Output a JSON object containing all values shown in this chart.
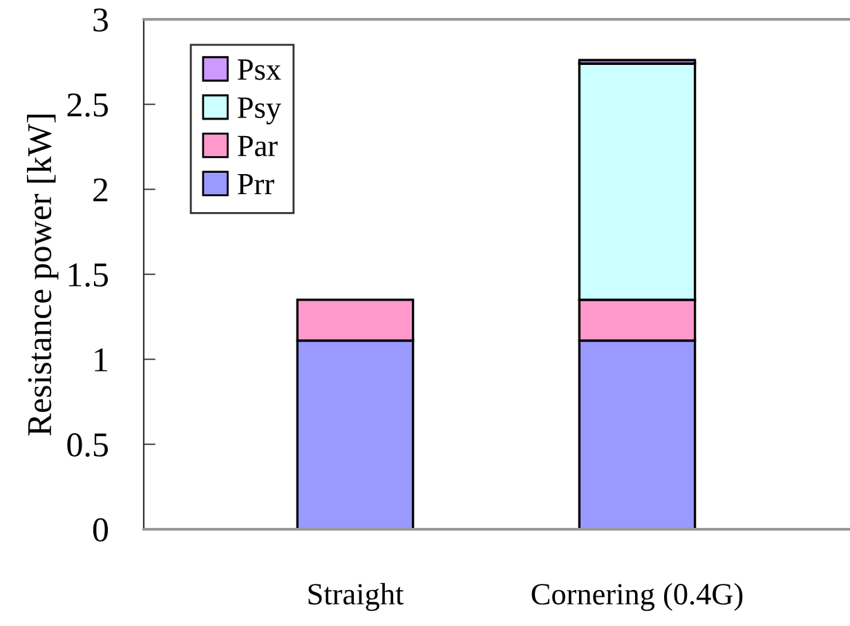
{
  "chart_data": {
    "type": "bar",
    "stacked": true,
    "ylabel": "Resistance power [kW]",
    "categories": [
      "Straight",
      "Cornering (0.4G)"
    ],
    "series": [
      {
        "name": "Prr",
        "color": "#9999ff",
        "values": [
          1.11,
          1.11
        ]
      },
      {
        "name": "Par",
        "color": "#ff99cc",
        "values": [
          0.24,
          0.24
        ]
      },
      {
        "name": "Psy",
        "color": "#ccffff",
        "values": [
          0,
          1.39
        ]
      },
      {
        "name": "Psx",
        "color": "#cc99ff",
        "values": [
          0,
          0.02
        ]
      }
    ],
    "ylim": [
      0,
      3
    ],
    "yticks": [
      0,
      0.5,
      1,
      1.5,
      2,
      2.5,
      3
    ],
    "grid": false,
    "legend": "top left"
  }
}
